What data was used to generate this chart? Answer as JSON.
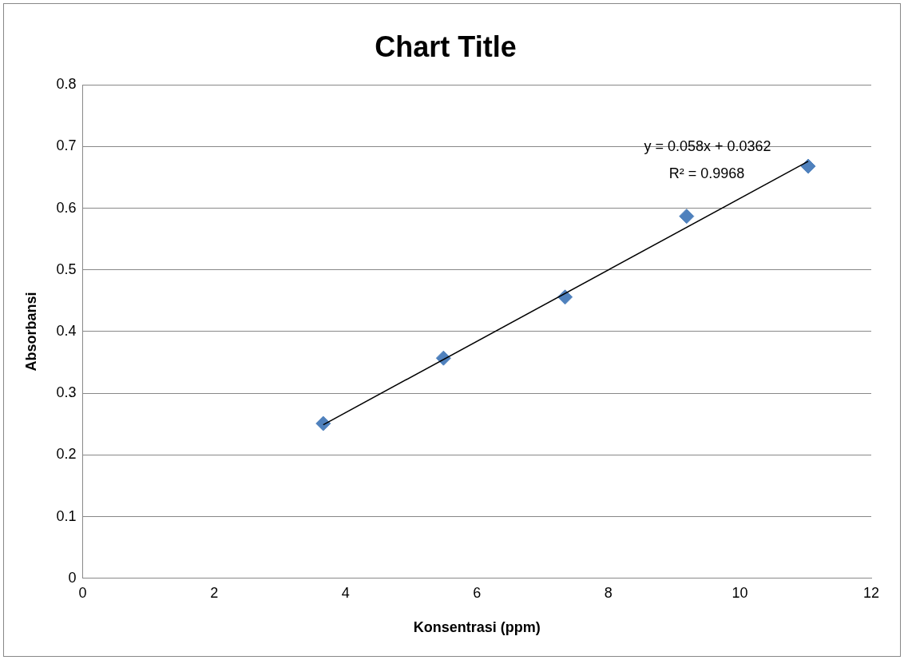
{
  "chart_data": {
    "type": "scatter",
    "title": "Chart Title",
    "xlabel": "Konsentrasi (ppm)",
    "ylabel": "Absorbansi",
    "xlim": [
      0,
      12
    ],
    "xticks": [
      0,
      2,
      4,
      6,
      8,
      10,
      12
    ],
    "ylim": [
      0,
      0.8
    ],
    "yticks": [
      0,
      0.1,
      0.2,
      0.3,
      0.4,
      0.5,
      0.6,
      0.7,
      0.8
    ],
    "grid": "y",
    "marker": "diamond",
    "series": [
      {
        "type": "scatter",
        "color": "#4f81bd",
        "x": [
          3.66,
          5.49,
          7.34,
          9.19,
          11.04
        ],
        "values": [
          0.251,
          0.357,
          0.456,
          0.587,
          0.668
        ]
      },
      {
        "type": "line",
        "color": "#000000",
        "marker": "none",
        "x": [
          3.66,
          11.04
        ],
        "values": [
          0.249,
          0.676
        ]
      }
    ],
    "annotations": [
      "y = 0.058x + 0.0362",
      "R² = 0.9968"
    ]
  }
}
